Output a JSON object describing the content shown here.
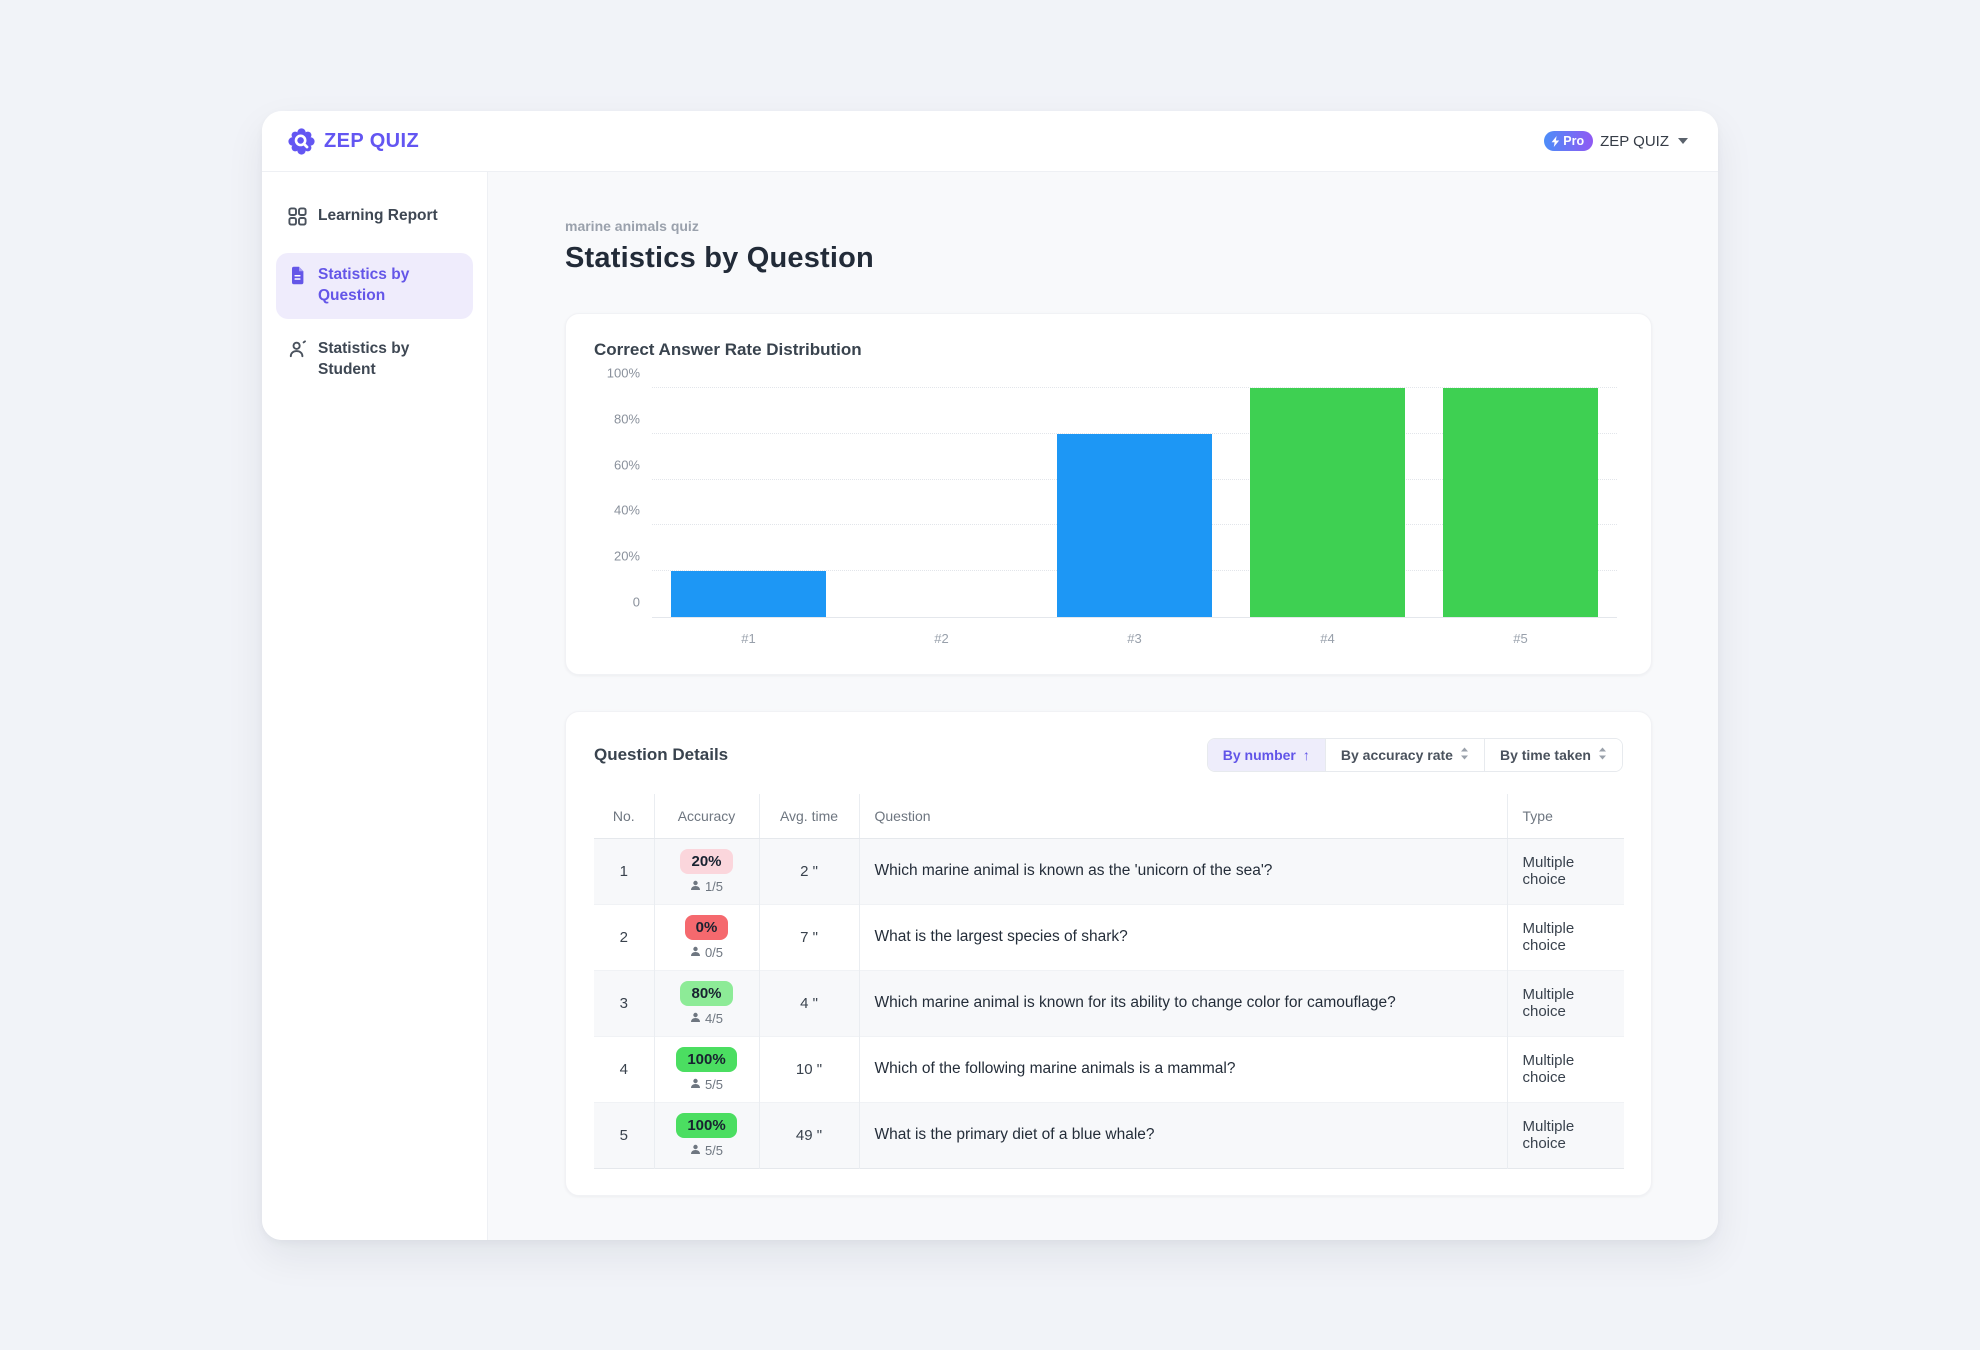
{
  "brand": {
    "logo_text": "ZEP QUIZ",
    "purple": "#6356F2"
  },
  "header": {
    "account": {
      "pro_label": "Pro",
      "name": "ZEP QUIZ"
    }
  },
  "sidebar": {
    "items": [
      {
        "label": "Learning Report",
        "icon": "grid-icon",
        "active": false
      },
      {
        "label": "Statistics by Question",
        "icon": "document-icon",
        "active": true
      },
      {
        "label": "Statistics by Student",
        "icon": "person-icon",
        "active": false
      }
    ]
  },
  "page": {
    "breadcrumb": "marine animals quiz",
    "title": "Statistics by Question"
  },
  "chart_card": {
    "title": "Correct Answer Rate Distribution"
  },
  "chart_data": {
    "type": "bar",
    "title": "Correct Answer Rate Distribution",
    "categories": [
      "#1",
      "#2",
      "#3",
      "#4",
      "#5"
    ],
    "values": [
      20,
      0,
      80,
      100,
      100
    ],
    "bar_colors": [
      "#1D97F5",
      "#1D97F5",
      "#1D97F5",
      "#3ED052",
      "#3ED052"
    ],
    "xlabel": "",
    "ylabel": "",
    "ylim": [
      0,
      100
    ],
    "ytick_values": [
      0,
      20,
      40,
      60,
      80,
      100
    ],
    "ytick_labels": [
      "0",
      "20%",
      "40%",
      "60%",
      "80%",
      "100%"
    ],
    "grid": "horizontal-dotted",
    "legend": "none"
  },
  "details": {
    "title": "Question Details",
    "sort_options": [
      {
        "label": "By number",
        "active": true,
        "direction": "asc"
      },
      {
        "label": "By accuracy rate",
        "active": false,
        "direction": "none"
      },
      {
        "label": "By time taken",
        "active": false,
        "direction": "none"
      }
    ],
    "columns": [
      "No.",
      "Accuracy",
      "Avg. time",
      "Question",
      "Type"
    ],
    "rows": [
      {
        "no": "1",
        "accuracy": "20%",
        "badge": "pink",
        "count": "1/5",
        "avg_time": "2 \"",
        "question": "Which marine animal is known as the 'unicorn of the sea'?",
        "type": "Multiple choice"
      },
      {
        "no": "2",
        "accuracy": "0%",
        "badge": "red",
        "count": "0/5",
        "avg_time": "7 \"",
        "question": "What is the largest species of shark?",
        "type": "Multiple choice"
      },
      {
        "no": "3",
        "accuracy": "80%",
        "badge": "lgreen",
        "count": "4/5",
        "avg_time": "4 \"",
        "question": "Which marine animal is known for its ability to change color for camouflage?",
        "type": "Multiple choice"
      },
      {
        "no": "4",
        "accuracy": "100%",
        "badge": "green",
        "count": "5/5",
        "avg_time": "10 \"",
        "question": "Which of the following marine animals is a mammal?",
        "type": "Multiple choice"
      },
      {
        "no": "5",
        "accuracy": "100%",
        "badge": "green",
        "count": "5/5",
        "avg_time": "49 \"",
        "question": "What is the primary diet of a blue whale?",
        "type": "Multiple choice"
      }
    ]
  }
}
